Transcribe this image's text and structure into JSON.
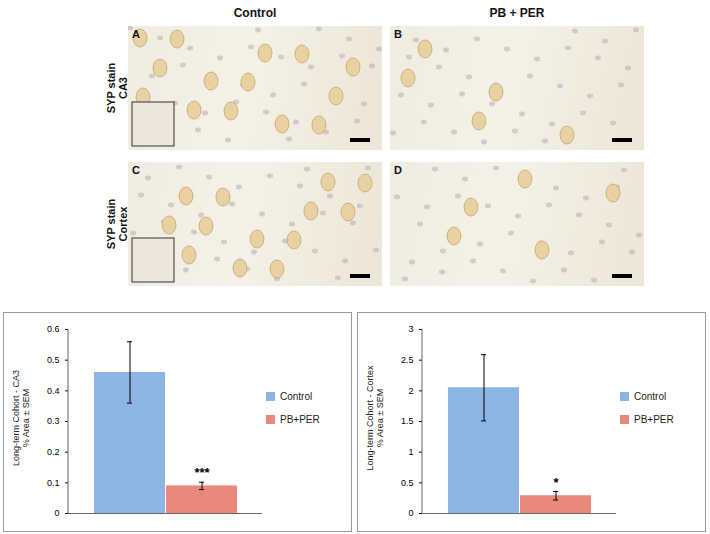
{
  "figure": {
    "column_headers": [
      "Control",
      "PB + PER"
    ],
    "row_labels": [
      "SYP stain\nCA3",
      "SYP stain\nCortex"
    ],
    "panels": [
      "A",
      "B",
      "C",
      "D"
    ]
  },
  "chart_data": [
    {
      "type": "bar",
      "y_label": "Long-term Cohort - CA3\n% Area ± SEM",
      "series": [
        {
          "name": "Control",
          "color": "#8eb4e3",
          "values": [
            0.46
          ],
          "errors": [
            0.1
          ]
        },
        {
          "name": "PB+PER",
          "color": "#e9897e",
          "values": [
            0.09
          ],
          "errors": [
            0.012
          ]
        }
      ],
      "ylim": [
        0,
        0.6
      ],
      "yticks": [
        0,
        0.1,
        0.2,
        0.3,
        0.4,
        0.5,
        0.6
      ],
      "grid": false,
      "legend": "right",
      "annotations": [
        {
          "text": "***",
          "series": "PB+PER"
        }
      ]
    },
    {
      "type": "bar",
      "y_label": "Long-term Cohort - Cortex\n% Area ± SEM",
      "series": [
        {
          "name": "Control",
          "color": "#8eb4e3",
          "values": [
            2.05
          ],
          "errors": [
            0.54
          ]
        },
        {
          "name": "PB+PER",
          "color": "#e9897e",
          "values": [
            0.29
          ],
          "errors": [
            0.07
          ]
        }
      ],
      "ylim": [
        0,
        3
      ],
      "yticks": [
        0,
        0.5,
        1,
        1.5,
        2,
        2.5,
        3
      ],
      "grid": false,
      "legend": "right",
      "annotations": [
        {
          "text": "*",
          "series": "PB+PER"
        }
      ]
    }
  ]
}
